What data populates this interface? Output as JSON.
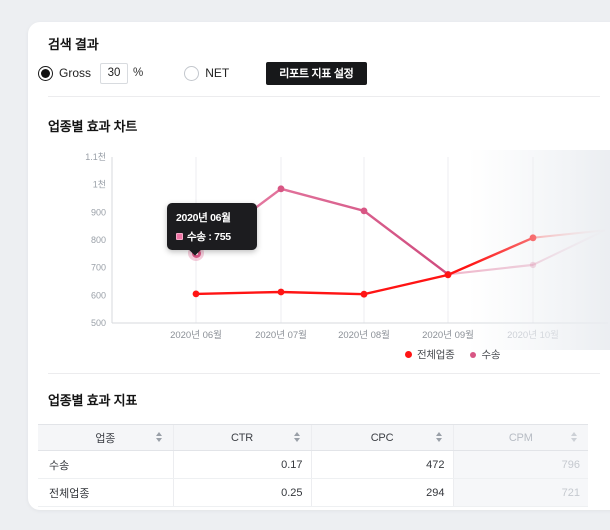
{
  "filters": {
    "section_title": "검색 결과",
    "gross": {
      "label": "Gross",
      "value": "30",
      "unit": "%",
      "selected": true
    },
    "net": {
      "label": "NET",
      "selected": false
    },
    "report_button_label": "리포트 지표 설정"
  },
  "chart": {
    "section_title": "업종별 효과 차트",
    "tooltip": {
      "date": "2020년 06월",
      "text": "수송 : 755"
    },
    "legend": [
      {
        "label": "전체업종",
        "color": "#ff1414"
      },
      {
        "label": "수송",
        "color": "#d85684"
      }
    ]
  },
  "chart_data": {
    "type": "line",
    "x_labels": [
      "2020년 06월",
      "2020년 07월",
      "2020년 08월",
      "2020년 09월",
      "2020년 10월"
    ],
    "y_ticks": [
      {
        "label": "1.1천",
        "value": 1100
      },
      {
        "label": "1천",
        "value": 1000
      },
      {
        "label": "900",
        "value": 900
      },
      {
        "label": "800",
        "value": 800
      },
      {
        "label": "700",
        "value": 700
      },
      {
        "label": "600",
        "value": 600
      },
      {
        "label": "500",
        "value": 500
      }
    ],
    "ylim": [
      500,
      1100
    ],
    "series": [
      {
        "name": "전체업종",
        "color": "#ff1414",
        "values": [
          605,
          612,
          604,
          674,
          808
        ]
      },
      {
        "name": "수송",
        "color": "#d85684",
        "values": [
          755,
          985,
          905,
          676,
          710
        ]
      }
    ],
    "forecast_convergence_value": 835,
    "highlighted_point": {
      "series": "수송",
      "x": "2020년 06월",
      "value": 755
    },
    "last_x_is_faded": true,
    "grid": "vertical",
    "legend_position": "bottom-right"
  },
  "table": {
    "section_title": "업종별 효과 지표",
    "columns": [
      {
        "label": "업종"
      },
      {
        "label": "CTR"
      },
      {
        "label": "CPC"
      },
      {
        "label": "CPM",
        "disabled": true
      }
    ],
    "rows": [
      {
        "industry": "수송",
        "ctr": "0.17",
        "cpc": "472",
        "cpm": "796"
      },
      {
        "industry": "전체업종",
        "ctr": "0.25",
        "cpc": "294",
        "cpm": "721"
      }
    ]
  }
}
